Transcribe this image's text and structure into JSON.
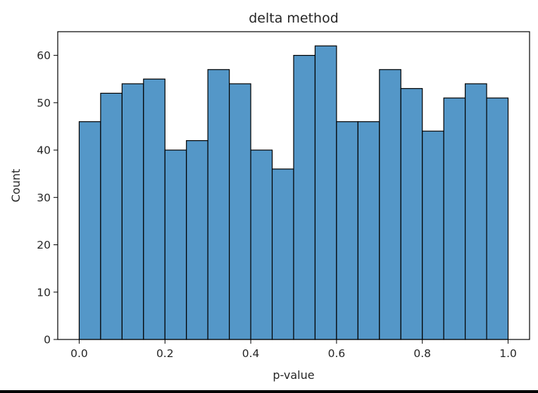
{
  "chart_data": {
    "type": "bar",
    "title": "delta method",
    "xlabel": "p-value",
    "ylabel": "Count",
    "bin_edges": [
      0.0,
      0.05,
      0.1,
      0.15,
      0.2,
      0.25,
      0.3,
      0.35,
      0.4,
      0.45,
      0.5,
      0.55,
      0.6,
      0.65,
      0.7,
      0.75,
      0.8,
      0.85,
      0.9,
      0.95,
      1.0
    ],
    "values": [
      46,
      52,
      54,
      55,
      40,
      42,
      57,
      54,
      40,
      36,
      60,
      62,
      46,
      46,
      57,
      53,
      44,
      51,
      54,
      51
    ],
    "xlim": [
      -0.05,
      1.05
    ],
    "ylim": [
      0,
      65
    ],
    "xticks": [
      "0.0",
      "0.2",
      "0.4",
      "0.6",
      "0.8",
      "1.0"
    ],
    "yticks": [
      "0",
      "10",
      "20",
      "30",
      "40",
      "50",
      "60"
    ],
    "bar_color": "#5497c8",
    "edge_color": "#000000",
    "grid": false,
    "legend": "none"
  }
}
